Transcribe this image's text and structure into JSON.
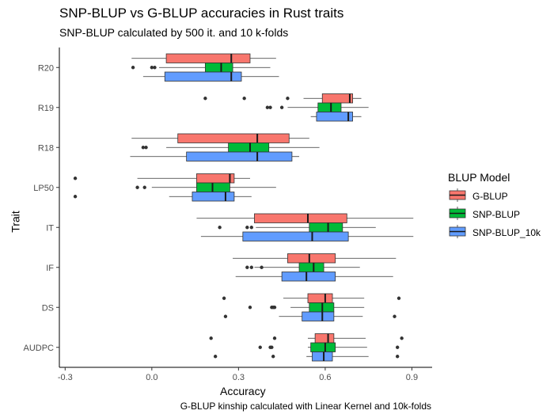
{
  "chart_data": {
    "type": "boxplot",
    "orientation": "horizontal",
    "title": "SNP-BLUP vs G-BLUP accuracies in Rust traits",
    "subtitle": "SNP-BLUP calculated by 500 it. and 10 k-folds",
    "caption": "G-BLUP kinship calculated with Linear Kernel and 10k-folds",
    "xlabel": "Accuracy",
    "ylabel": "Trait",
    "xlim": [
      -0.32,
      0.97
    ],
    "xticks": [
      -0.3,
      0.0,
      0.3,
      0.6,
      0.9
    ],
    "xtick_labels": [
      "-0.3",
      "0.0",
      "0.3",
      "0.6",
      "0.9"
    ],
    "categories": [
      "AUDPC",
      "DS",
      "IF",
      "IT",
      "LP50",
      "R18",
      "R19",
      "R20"
    ],
    "grid": false,
    "legend": {
      "title": "BLUP Model",
      "placement": "right",
      "items": [
        {
          "label": "G-BLUP",
          "color": "#F8766D"
        },
        {
          "label": "SNP-BLUP",
          "color": "#00BA38"
        },
        {
          "label": "SNP-BLUP_10k",
          "color": "#619CFF"
        }
      ]
    },
    "series": [
      {
        "name": "G-BLUP",
        "color": "#F8766D",
        "boxes": [
          {
            "trait": "AUDPC",
            "min": 0.54,
            "q1": 0.565,
            "median": 0.61,
            "q3": 0.63,
            "max": 0.74,
            "outliers": [
              0.205,
              0.425,
              0.865
            ]
          },
          {
            "trait": "DS",
            "min": 0.455,
            "q1": 0.54,
            "median": 0.6,
            "q3": 0.625,
            "max": 0.735,
            "outliers": [
              0.25,
              0.855
            ]
          },
          {
            "trait": "IF",
            "min": 0.28,
            "q1": 0.47,
            "median": 0.545,
            "q3": 0.635,
            "max": 0.845,
            "outliers": []
          },
          {
            "trait": "IT",
            "min": 0.155,
            "q1": 0.355,
            "median": 0.54,
            "q3": 0.675,
            "max": 0.905,
            "outliers": []
          },
          {
            "trait": "LP50",
            "min": -0.05,
            "q1": 0.155,
            "median": 0.27,
            "q3": 0.285,
            "max": 0.34,
            "outliers": [
              -0.265
            ]
          },
          {
            "trait": "R18",
            "min": -0.07,
            "q1": 0.09,
            "median": 0.365,
            "q3": 0.475,
            "max": 0.545,
            "outliers": []
          },
          {
            "trait": "R19",
            "min": 0.525,
            "q1": 0.59,
            "median": 0.685,
            "q3": 0.695,
            "max": 0.725,
            "outliers": [
              0.185,
              0.32,
              0.47
            ]
          },
          {
            "trait": "R20",
            "min": -0.07,
            "q1": 0.05,
            "median": 0.275,
            "q3": 0.34,
            "max": 0.43,
            "outliers": []
          }
        ]
      },
      {
        "name": "SNP-BLUP",
        "color": "#00BA38",
        "boxes": [
          {
            "trait": "AUDPC",
            "min": 0.54,
            "q1": 0.55,
            "median": 0.6,
            "q3": 0.635,
            "max": 0.745,
            "outliers": [
              0.375,
              0.41,
              0.415,
              0.85
            ]
          },
          {
            "trait": "DS",
            "min": 0.48,
            "q1": 0.545,
            "median": 0.59,
            "q3": 0.63,
            "max": 0.735,
            "outliers": [
              0.34,
              0.415,
              0.42,
              0.425
            ]
          },
          {
            "trait": "IF",
            "min": 0.355,
            "q1": 0.51,
            "median": 0.56,
            "q3": 0.595,
            "max": 0.72,
            "outliers": [
              0.33,
              0.345,
              0.38
            ]
          },
          {
            "trait": "IT",
            "min": 0.36,
            "q1": 0.545,
            "median": 0.61,
            "q3": 0.66,
            "max": 0.775,
            "outliers": [
              0.235,
              0.33,
              0.345
            ]
          },
          {
            "trait": "LP50",
            "min": 0.0,
            "q1": 0.155,
            "median": 0.21,
            "q3": 0.27,
            "max": 0.43,
            "outliers": [
              -0.05,
              -0.025
            ]
          },
          {
            "trait": "R18",
            "min": 0.05,
            "q1": 0.265,
            "median": 0.34,
            "q3": 0.405,
            "max": 0.58,
            "outliers": [
              -0.03,
              -0.02
            ]
          },
          {
            "trait": "R19",
            "min": 0.47,
            "q1": 0.575,
            "median": 0.62,
            "q3": 0.655,
            "max": 0.75,
            "outliers": [
              0.4,
              0.41,
              0.45
            ]
          },
          {
            "trait": "R20",
            "min": 0.025,
            "q1": 0.185,
            "median": 0.24,
            "q3": 0.28,
            "max": 0.41,
            "outliers": [
              -0.065,
              0.0,
              0.01
            ]
          }
        ]
      },
      {
        "name": "SNP-BLUP_10k",
        "color": "#619CFF",
        "boxes": [
          {
            "trait": "AUDPC",
            "min": 0.535,
            "q1": 0.555,
            "median": 0.595,
            "q3": 0.625,
            "max": 0.75,
            "outliers": [
              0.22,
              0.42,
              0.85
            ]
          },
          {
            "trait": "DS",
            "min": 0.44,
            "q1": 0.52,
            "median": 0.59,
            "q3": 0.63,
            "max": 0.73,
            "outliers": [
              0.255,
              0.84
            ]
          },
          {
            "trait": "IF",
            "min": 0.29,
            "q1": 0.45,
            "median": 0.535,
            "q3": 0.635,
            "max": 0.835,
            "outliers": []
          },
          {
            "trait": "IT",
            "min": 0.17,
            "q1": 0.315,
            "median": 0.555,
            "q3": 0.68,
            "max": 0.905,
            "outliers": []
          },
          {
            "trait": "LP50",
            "min": 0.06,
            "q1": 0.14,
            "median": 0.255,
            "q3": 0.285,
            "max": 0.345,
            "outliers": [
              -0.265
            ]
          },
          {
            "trait": "R18",
            "min": -0.075,
            "q1": 0.12,
            "median": 0.365,
            "q3": 0.485,
            "max": 0.51,
            "outliers": []
          },
          {
            "trait": "R19",
            "min": 0.55,
            "q1": 0.57,
            "median": 0.68,
            "q3": 0.695,
            "max": 0.725,
            "outliers": []
          },
          {
            "trait": "R20",
            "min": -0.03,
            "q1": 0.045,
            "median": 0.275,
            "q3": 0.31,
            "max": 0.44,
            "outliers": []
          }
        ]
      }
    ]
  }
}
